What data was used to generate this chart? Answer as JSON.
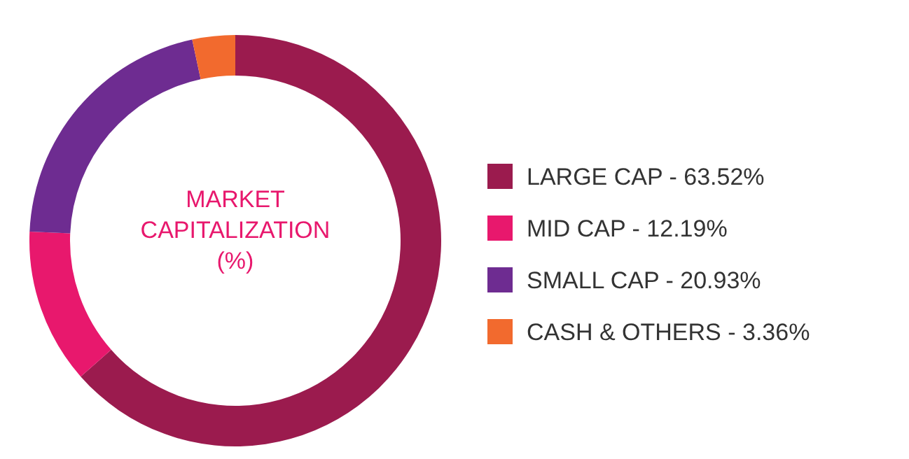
{
  "chart_data": {
    "type": "donut",
    "title": "MARKET CAPITALIZATION (%)",
    "categories": [
      "LARGE CAP -",
      "MID CAP -",
      "SMALL CAP -",
      "CASH & OTHERS -"
    ],
    "values": [
      63.52,
      12.19,
      20.93,
      3.36
    ],
    "value_labels": [
      "63.52%",
      "12.19%",
      "20.93%",
      "3.36%"
    ],
    "colors": [
      "#9b1b4e",
      "#e8186d",
      "#6e2c91",
      "#f26a2e"
    ],
    "legend": "right"
  }
}
